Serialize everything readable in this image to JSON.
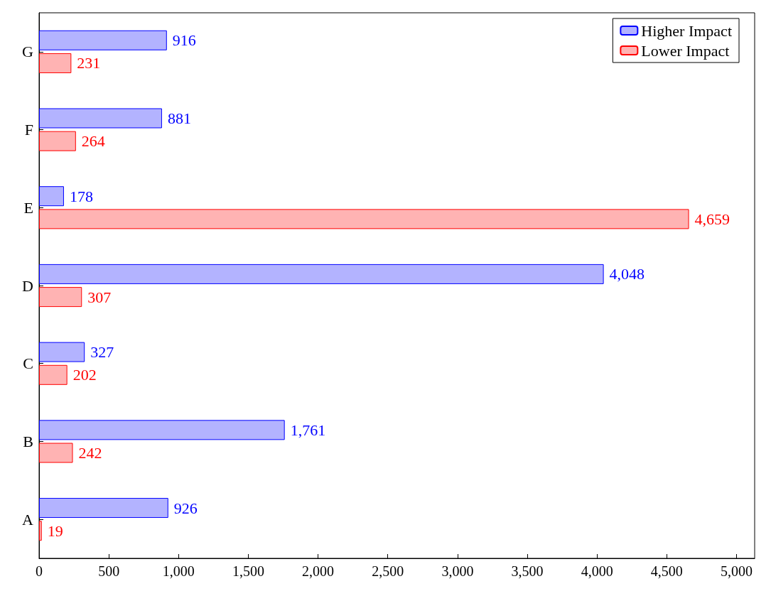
{
  "chart_data": {
    "type": "bar",
    "orientation": "horizontal",
    "categories": [
      "G",
      "F",
      "E",
      "D",
      "C",
      "B",
      "A"
    ],
    "series": [
      {
        "name": "Higher Impact",
        "color": "#b3b3ff",
        "values": [
          916,
          881,
          178,
          4048,
          327,
          1761,
          926
        ],
        "value_labels": [
          "916",
          "881",
          "178",
          "4,048",
          "327",
          "1,761",
          "926"
        ]
      },
      {
        "name": "Lower Impact",
        "color": "#ffb3b3",
        "values": [
          231,
          264,
          4659,
          307,
          202,
          242,
          19
        ],
        "value_labels": [
          "231",
          "264",
          "4,659",
          "307",
          "202",
          "242",
          "19"
        ]
      }
    ],
    "xlim": [
      0,
      5130
    ],
    "xticks": [
      0,
      500,
      {
        "value": 1000,
        "label": "1,000"
      },
      {
        "value": 1500,
        "label": "1,500"
      },
      {
        "value": 2000,
        "label": "2,000"
      },
      {
        "value": 2500,
        "label": "2,500"
      },
      {
        "value": 3000,
        "label": "3,000"
      },
      {
        "value": 3500,
        "label": "3,500"
      },
      {
        "value": 4000,
        "label": "4,000"
      },
      {
        "value": 4500,
        "label": "4,500"
      },
      {
        "value": 5000,
        "label": "5,000"
      }
    ],
    "legend": "top right",
    "grid": false
  }
}
